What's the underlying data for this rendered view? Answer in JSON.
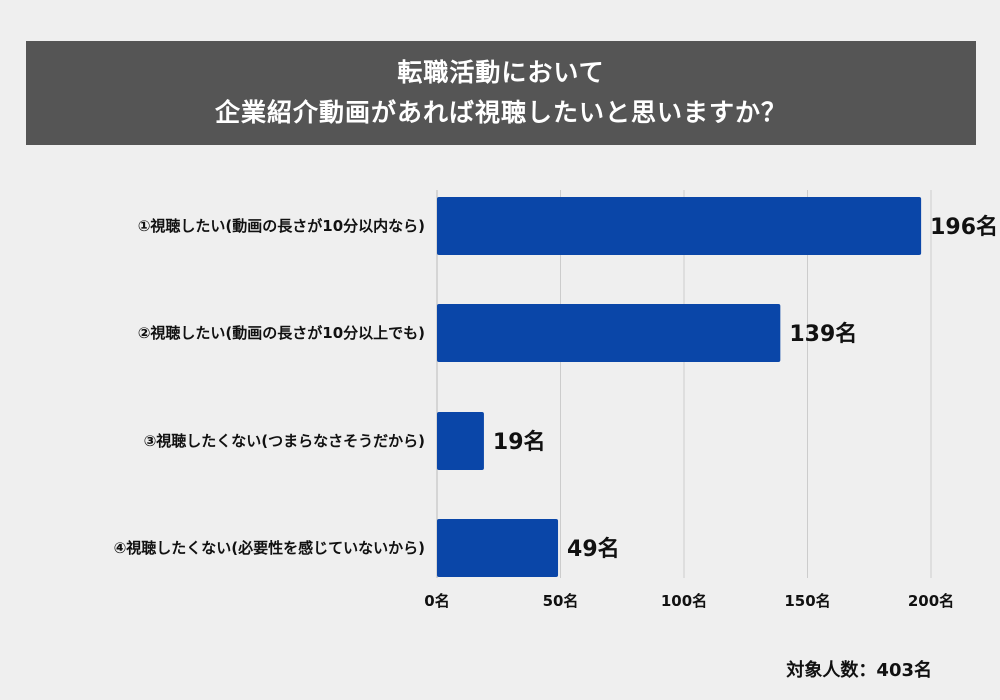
{
  "title_lines": [
    "転職活動において",
    "企業紹介動画があれば視聴したいと思いますか？"
  ],
  "footer": "対象人数：403名",
  "colors": {
    "bar": "#0a46a8",
    "title_bg": "#555555",
    "grid": "#cccccc",
    "background": "#efefef"
  },
  "chart_data": {
    "type": "bar",
    "orientation": "horizontal",
    "title": "転職活動において企業紹介動画があれば視聴したいと思いますか？",
    "categories": [
      "①視聴したい(動画の長さが10分以内なら)",
      "②視聴したい(動画の長さが10分以上でも)",
      "③視聴したくない(つまらなさそうだから)",
      "④視聴したくない(必要性を感じていないから)"
    ],
    "values": [
      196,
      139,
      19,
      49
    ],
    "value_labels": [
      "196名",
      "139名",
      "19名",
      "49名"
    ],
    "xticks": [
      0,
      50,
      100,
      150,
      200
    ],
    "xtick_labels": [
      "0名",
      "50名",
      "100名",
      "150名",
      "200名"
    ],
    "xlim": [
      0,
      200
    ],
    "unit": "名",
    "grid": true
  }
}
